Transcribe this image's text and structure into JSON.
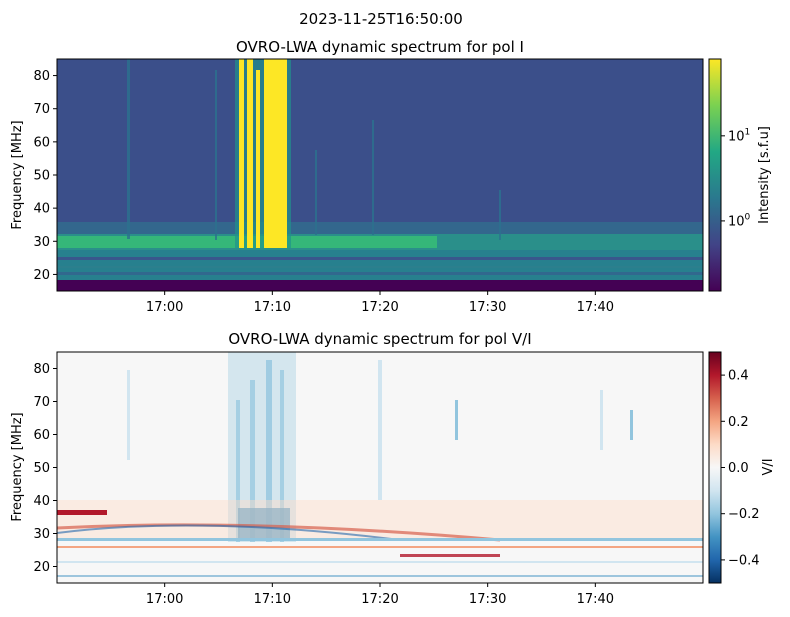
{
  "figure": {
    "suptitle": "2023-11-25T16:50:00"
  },
  "chart_data": [
    {
      "type": "heatmap",
      "title": "OVRO-LWA dynamic spectrum for pol I",
      "xlabel": "",
      "ylabel": "Frequency [MHz]",
      "x_range": [
        "16:50",
        "17:50"
      ],
      "x_ticks": [
        "17:00",
        "17:10",
        "17:20",
        "17:30",
        "17:40"
      ],
      "x_tick_minutes": [
        10,
        20,
        30,
        40,
        50
      ],
      "ylim": [
        15,
        85
      ],
      "y_ticks": [
        20,
        30,
        40,
        50,
        60,
        70,
        80
      ],
      "colorbar": {
        "label": "Intensity [s.f.u]",
        "scale": "log",
        "range": [
          0.15,
          80
        ],
        "ticks": [
          {
            "value": 1,
            "label": "10",
            "exp": "0"
          },
          {
            "value": 10,
            "label": "10",
            "exp": "1"
          }
        ],
        "colormap": "viridis",
        "colors": [
          "#440154",
          "#3b528b",
          "#21918c",
          "#5ec962",
          "#fde725"
        ]
      },
      "features": {
        "background_intensity": 0.8,
        "type_iii_burst": {
          "start": "17:07",
          "end": "17:12",
          "freq_range": [
            27,
            85
          ],
          "peak_intensity": 80
        },
        "low_freq_band": {
          "freq_range": [
            16,
            30
          ],
          "intensity": 4
        }
      }
    },
    {
      "type": "heatmap",
      "title": "OVRO-LWA dynamic spectrum for pol V/I",
      "xlabel": "",
      "ylabel": "Frequency [MHz]",
      "x_range": [
        "16:50",
        "17:50"
      ],
      "x_ticks": [
        "17:00",
        "17:10",
        "17:20",
        "17:30",
        "17:40"
      ],
      "x_tick_minutes": [
        10,
        20,
        30,
        40,
        50
      ],
      "ylim": [
        15,
        85
      ],
      "y_ticks": [
        20,
        30,
        40,
        50,
        60,
        70,
        80
      ],
      "colorbar": {
        "label": "V/I",
        "scale": "linear",
        "range": [
          -0.5,
          0.5
        ],
        "ticks": [
          {
            "value": 0.4,
            "label": "0.4"
          },
          {
            "value": 0.2,
            "label": "0.2"
          },
          {
            "value": 0.0,
            "label": "0.0"
          },
          {
            "value": -0.2,
            "label": "−0.2"
          },
          {
            "value": -0.4,
            "label": "−0.4"
          }
        ],
        "colormap": "RdBu_r",
        "colors": [
          "#053061",
          "#2166ac",
          "#4393c3",
          "#92c5de",
          "#d1e5f0",
          "#f7f7f7",
          "#fddbc7",
          "#f4a582",
          "#d6604d",
          "#b2182b",
          "#67001f"
        ]
      },
      "features": {
        "background_ratio": 0.0,
        "burst_ratio": -0.15,
        "low_freq_ratio_range": [
          -0.3,
          0.3
        ]
      }
    }
  ]
}
